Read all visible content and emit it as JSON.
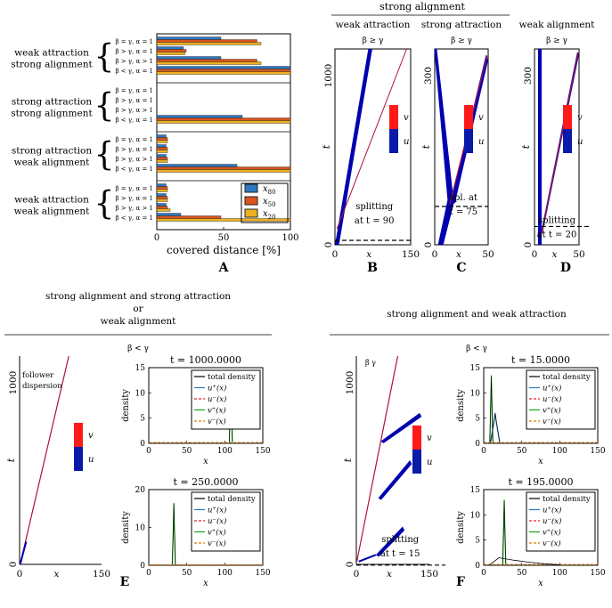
{
  "panelA": {
    "label": "A",
    "xlabel": "covered distance [%]",
    "ticks": [
      "0",
      "50",
      "100"
    ],
    "groups": [
      {
        "title1": "weak attraction",
        "title2": "strong alignment",
        "rows": [
          "β = γ, α = 1",
          "β > γ, α = 1",
          "β > γ, α > 1",
          "β < γ, α = 1"
        ]
      },
      {
        "title1": "strong attraction",
        "title2": "strong alignment",
        "rows": [
          "β = γ, α = 1",
          "β > γ, α = 1",
          "β > γ, α > 1",
          "β < γ, α = 1"
        ]
      },
      {
        "title1": "strong attraction",
        "title2": "weak alignment",
        "rows": [
          "β = γ, α = 1",
          "β > γ, α = 1",
          "β > γ, α > 1",
          "β < γ, α = 1"
        ]
      },
      {
        "title1": "weak attraction",
        "title2": "weak alignment",
        "rows": [
          "β = γ, α = 1",
          "β > γ, α = 1",
          "β > γ, α > 1",
          "β < γ, α = 1"
        ]
      }
    ],
    "legend": [
      "x80",
      "x50",
      "x20"
    ]
  },
  "chart_data": [
    {
      "type": "bar",
      "id": "A",
      "orientation": "horizontal",
      "xlabel": "covered distance [%]",
      "xlim": [
        0,
        100
      ],
      "series": [
        {
          "name": "x80",
          "color": "#2e78c2"
        },
        {
          "name": "x50",
          "color": "#d9541f"
        },
        {
          "name": "x20",
          "color": "#edb120"
        }
      ],
      "rows": [
        {
          "label": "β = γ, α = 1",
          "values": [
            48,
            75,
            78
          ]
        },
        {
          "label": "β > γ, α = 1",
          "values": [
            20,
            22,
            21
          ]
        },
        {
          "label": "β > γ, α > 1",
          "values": [
            48,
            75,
            78
          ]
        },
        {
          "label": "β < γ, α = 1",
          "values": [
            100,
            100,
            100
          ]
        },
        {
          "label": "β = γ, α = 1",
          "values": [
            0,
            0,
            0
          ]
        },
        {
          "label": "β > γ, α = 1",
          "values": [
            0,
            0,
            0
          ]
        },
        {
          "label": "β > γ, α > 1",
          "values": [
            0,
            0,
            0
          ]
        },
        {
          "label": "β < γ, α = 1",
          "values": [
            64,
            100,
            100
          ]
        },
        {
          "label": "β = γ, α = 1",
          "values": [
            7,
            8,
            8
          ]
        },
        {
          "label": "β > γ, α = 1",
          "values": [
            7,
            8,
            8
          ]
        },
        {
          "label": "β > γ, α > 1",
          "values": [
            7,
            8,
            8
          ]
        },
        {
          "label": "β < γ, α = 1",
          "values": [
            60,
            100,
            100
          ]
        },
        {
          "label": "β = γ, α = 1",
          "values": [
            7,
            8,
            8
          ]
        },
        {
          "label": "β > γ, α = 1",
          "values": [
            7,
            8,
            8
          ]
        },
        {
          "label": "β > γ, α > 1",
          "values": [
            7,
            8,
            10
          ]
        },
        {
          "label": "β < γ, α = 1",
          "values": [
            18,
            48,
            100
          ]
        }
      ]
    },
    {
      "type": "line",
      "id": "B",
      "xlim": [
        0,
        150
      ],
      "ylim": [
        0,
        1100
      ],
      "xticks": [
        "0",
        "x",
        "150"
      ],
      "yticks": [
        "0",
        "1000"
      ],
      "xlabel": "x",
      "ylabel": "t",
      "bands": [
        {
          "color": "#0000b0",
          "x0": 0,
          "t0": 0,
          "x1": 80,
          "t1": 1100,
          "w": 3
        }
      ],
      "lines": [
        {
          "color": "#b0103a",
          "x0": 0,
          "t0": 90,
          "x1": 140,
          "t1": 1100
        }
      ],
      "annotation": {
        "line1": "splitting",
        "line2": "at t = 90",
        "t": 90
      }
    },
    {
      "type": "line",
      "id": "C",
      "xlim": [
        0,
        50
      ],
      "ylim": [
        0,
        350
      ],
      "xticks": [
        "0",
        "x",
        "50"
      ],
      "yticks": [
        "0",
        "300"
      ],
      "xlabel": "x",
      "ylabel": "t",
      "annotation": {
        "line1": "spl. at",
        "line2": "t = 75",
        "t": 75
      }
    },
    {
      "type": "line",
      "id": "D",
      "xlim": [
        0,
        50
      ],
      "ylim": [
        0,
        350
      ],
      "xticks": [
        "0",
        "x",
        "50"
      ],
      "yticks": [
        "0",
        "300"
      ],
      "xlabel": "x",
      "ylabel": "t",
      "annotation": {
        "line1": "splitting",
        "line2": "at t = 20",
        "t": 20
      }
    },
    {
      "type": "line",
      "id": "E-kymo",
      "xlim": [
        0,
        150
      ],
      "ylim": [
        0,
        1100
      ],
      "xticks": [
        "0",
        "x",
        "150"
      ],
      "yticks": [
        "0",
        "1000"
      ],
      "xlabel": "x",
      "ylabel": "t",
      "annotation": "follower dispersion"
    },
    {
      "type": "line",
      "id": "E-top",
      "title": "t = 1000.0000",
      "xlim": [
        0,
        150
      ],
      "ylim": [
        0,
        15
      ],
      "xticks": [
        "0",
        "50",
        "100",
        "150"
      ],
      "yticks": [
        "0",
        "5",
        "10",
        "15"
      ],
      "xlabel": "x",
      "ylabel": "density",
      "peaks": [
        {
          "x": 108,
          "y": 13,
          "series": "v+"
        }
      ]
    },
    {
      "type": "line",
      "id": "E-bottom",
      "title": "t = 250.0000",
      "xlim": [
        0,
        150
      ],
      "ylim": [
        0,
        20
      ],
      "xticks": [
        "0",
        "50",
        "100",
        "150"
      ],
      "yticks": [
        "0",
        "10",
        "20"
      ],
      "xlabel": "x",
      "ylabel": "density",
      "peaks": [
        {
          "x": 33,
          "y": 16.5,
          "series": "v+"
        }
      ]
    },
    {
      "type": "line",
      "id": "F-kymo",
      "xlim": [
        0,
        150
      ],
      "ylim": [
        0,
        1100
      ],
      "xticks": [
        "0",
        "x",
        "150"
      ],
      "yticks": [
        "0",
        "1000"
      ],
      "xlabel": "x",
      "ylabel": "t",
      "annotation": {
        "line1": "splitting",
        "line2": "at t = 15",
        "t": 15
      }
    },
    {
      "type": "line",
      "id": "F-top",
      "title": "t = 15.0000",
      "xlim": [
        0,
        150
      ],
      "ylim": [
        0,
        15
      ],
      "xticks": [
        "0",
        "50",
        "100",
        "150"
      ],
      "yticks": [
        "0",
        "5",
        "10",
        "15"
      ],
      "xlabel": "x",
      "ylabel": "density",
      "peaks": [
        {
          "x": 10,
          "y": 13.5,
          "series": "v+"
        },
        {
          "x": 15,
          "y": 6,
          "series": "u+"
        }
      ]
    },
    {
      "type": "line",
      "id": "F-bottom",
      "title": "t = 195.0000",
      "xlim": [
        0,
        150
      ],
      "ylim": [
        0,
        15
      ],
      "xticks": [
        "0",
        "50",
        "100",
        "150"
      ],
      "yticks": [
        "0",
        "5",
        "10",
        "15"
      ],
      "xlabel": "x",
      "ylabel": "density",
      "peaks": [
        {
          "x": 27,
          "y": 13,
          "series": "v+"
        }
      ]
    }
  ],
  "legendDensity": [
    "total density",
    "u⁺(x)",
    "u⁻(x)",
    "v⁺(x)",
    "v⁻(x)"
  ],
  "labels": {
    "strongAlignment": "strong alignment",
    "weakAttraction": "weak attraction",
    "strongAttraction": "strong attraction",
    "weakAlignment": "weak alignment",
    "betaGe": "β ≥ γ",
    "betaLt": "β < γ",
    "gammaFrag": "β̃ γ",
    "B": "B",
    "C": "C",
    "D": "D",
    "E": "E",
    "F": "F",
    "v": "v",
    "u": "u",
    "eTitle1": "strong alignment and strong attraction",
    "eTitle2": "or",
    "eTitle3": "weak alignment",
    "fTitle": "strong alignment and weak attraction"
  }
}
